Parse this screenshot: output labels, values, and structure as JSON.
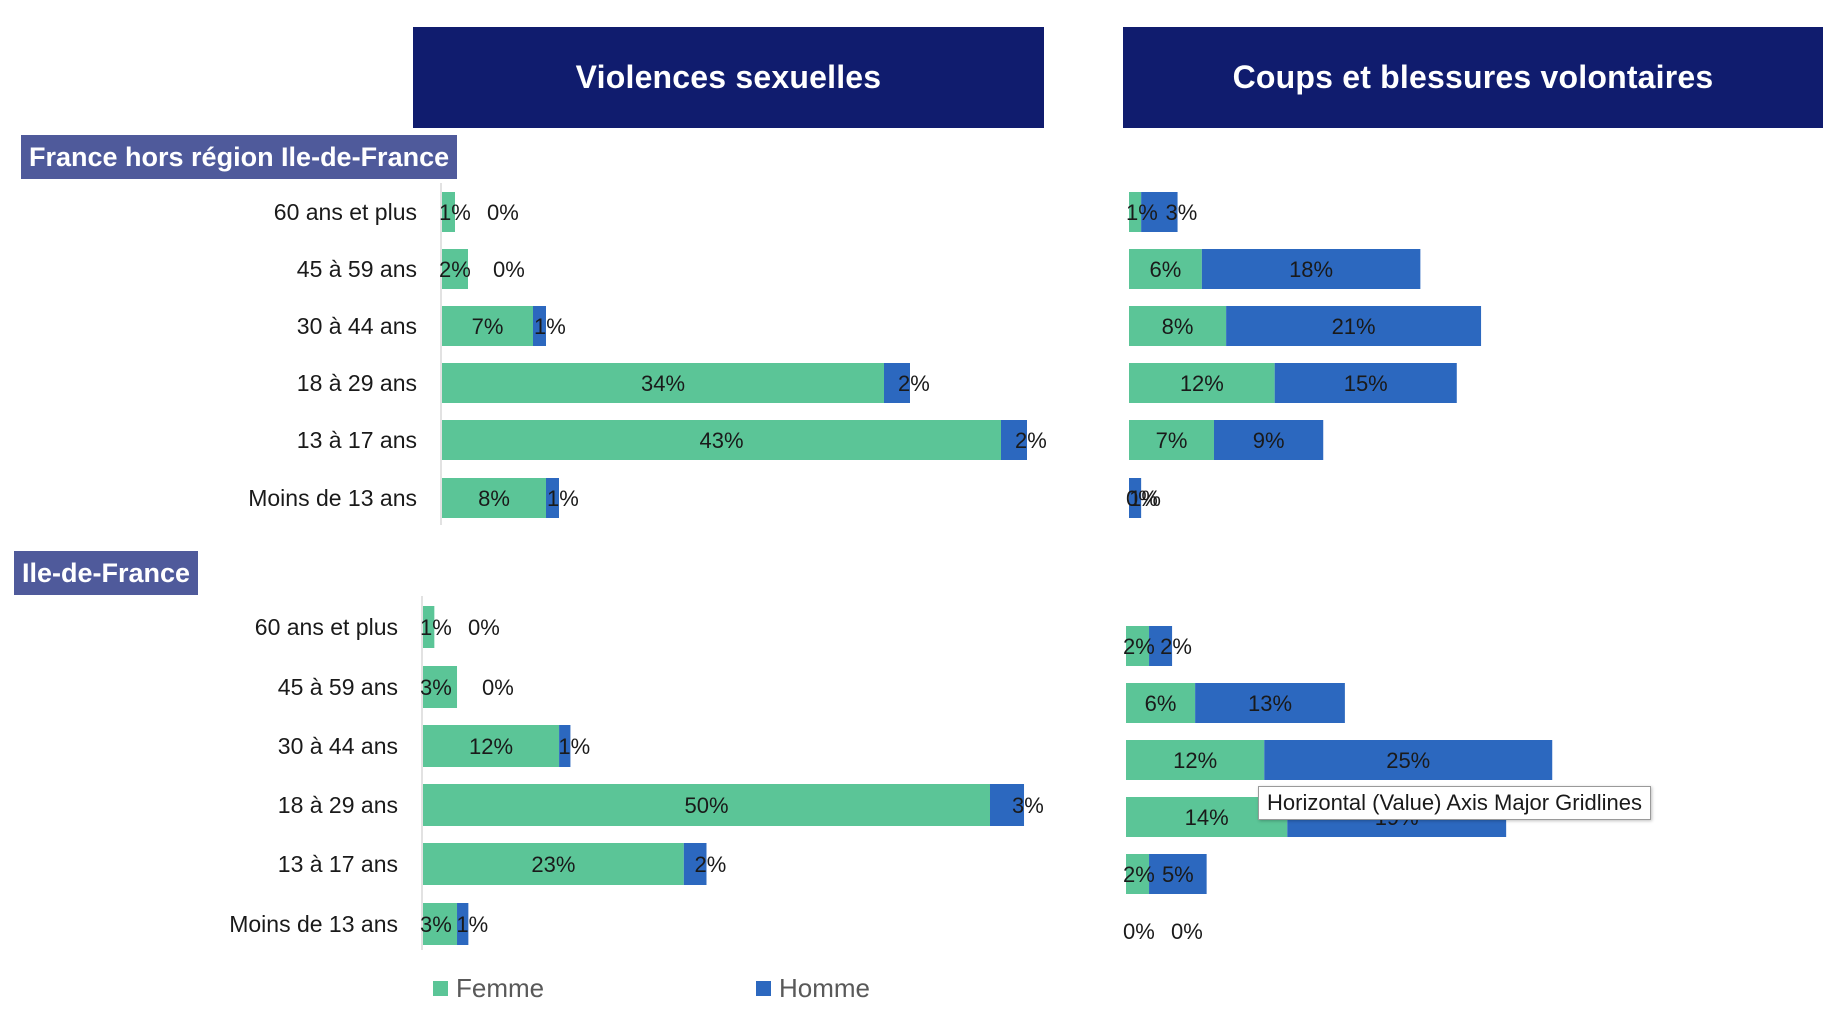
{
  "headers": {
    "left": "Violences sexuelles",
    "right": "Coups et blessures volontaires"
  },
  "regions": {
    "top": "France hors région Ile-de-France",
    "bottom": "Ile-de-France"
  },
  "tooltip": "Horizontal (Value) Axis Major Gridlines",
  "legend": {
    "femme": "Femme",
    "homme": "Homme"
  },
  "colors": {
    "header": "#101c6e",
    "region_label": "#4f5a9b",
    "femme": "#5bc597",
    "homme": "#2c68bf"
  },
  "chart_data": [
    {
      "type": "bar",
      "orientation": "horizontal",
      "stacked": true,
      "title": "Violences sexuelles",
      "region": "France hors région Ile-de-France",
      "categories": [
        "60 ans et plus",
        "45 à 59 ans",
        "30 à 44 ans",
        "18 à 29 ans",
        "13 à 17 ans",
        "Moins de 13 ans"
      ],
      "series": [
        {
          "name": "Femme",
          "values": [
            1,
            2,
            7,
            34,
            43,
            8
          ],
          "labels": [
            "1%",
            "2%",
            "7%",
            "34%",
            "43%",
            "8%"
          ]
        },
        {
          "name": "Homme",
          "values": [
            0,
            0,
            1,
            2,
            2,
            1
          ],
          "labels": [
            "0%",
            "0%",
            "1%",
            "2%",
            "2%",
            "1%"
          ]
        }
      ]
    },
    {
      "type": "bar",
      "orientation": "horizontal",
      "stacked": true,
      "title": "Coups et blessures volontaires",
      "region": "France hors région Ile-de-France",
      "categories": [
        "60 ans et plus",
        "45 à 59 ans",
        "30 à 44 ans",
        "18 à 29 ans",
        "13 à 17 ans",
        "Moins de 13 ans"
      ],
      "series": [
        {
          "name": "Femme",
          "values": [
            1,
            6,
            8,
            12,
            7,
            0
          ],
          "labels": [
            "1%",
            "6%",
            "8%",
            "12%",
            "7%",
            "0%"
          ]
        },
        {
          "name": "Homme",
          "values": [
            3,
            18,
            21,
            15,
            9,
            1
          ],
          "labels": [
            "3%",
            "18%",
            "21%",
            "15%",
            "9%",
            "1%"
          ]
        }
      ]
    },
    {
      "type": "bar",
      "orientation": "horizontal",
      "stacked": true,
      "title": "Violences sexuelles",
      "region": "Ile-de-France",
      "categories": [
        "60 ans et plus",
        "45 à 59 ans",
        "30 à 44 ans",
        "18 à 29 ans",
        "13 à 17 ans",
        "Moins de 13 ans"
      ],
      "series": [
        {
          "name": "Femme",
          "values": [
            1,
            3,
            12,
            50,
            23,
            3
          ],
          "labels": [
            "1%",
            "3%",
            "12%",
            "50%",
            "23%",
            "3%"
          ]
        },
        {
          "name": "Homme",
          "values": [
            0,
            0,
            1,
            3,
            2,
            1
          ],
          "labels": [
            "0%",
            "0%",
            "1%",
            "3%",
            "2%",
            "1%"
          ]
        }
      ]
    },
    {
      "type": "bar",
      "orientation": "horizontal",
      "stacked": true,
      "title": "Coups et blessures volontaires",
      "region": "Ile-de-France",
      "categories": [
        "60 ans et plus",
        "45 à 59 ans",
        "30 à 44 ans",
        "18 à 29 ans",
        "13 à 17 ans",
        "Moins de 13 ans"
      ],
      "series": [
        {
          "name": "Femme",
          "values": [
            2,
            6,
            12,
            14,
            2,
            0
          ],
          "labels": [
            "2%",
            "6%",
            "12%",
            "14%",
            "2%",
            "0%"
          ]
        },
        {
          "name": "Homme",
          "values": [
            2,
            13,
            25,
            19,
            5,
            0
          ],
          "labels": [
            "2%",
            "13%",
            "25%",
            "19%",
            "5%",
            "0%"
          ]
        }
      ]
    }
  ]
}
